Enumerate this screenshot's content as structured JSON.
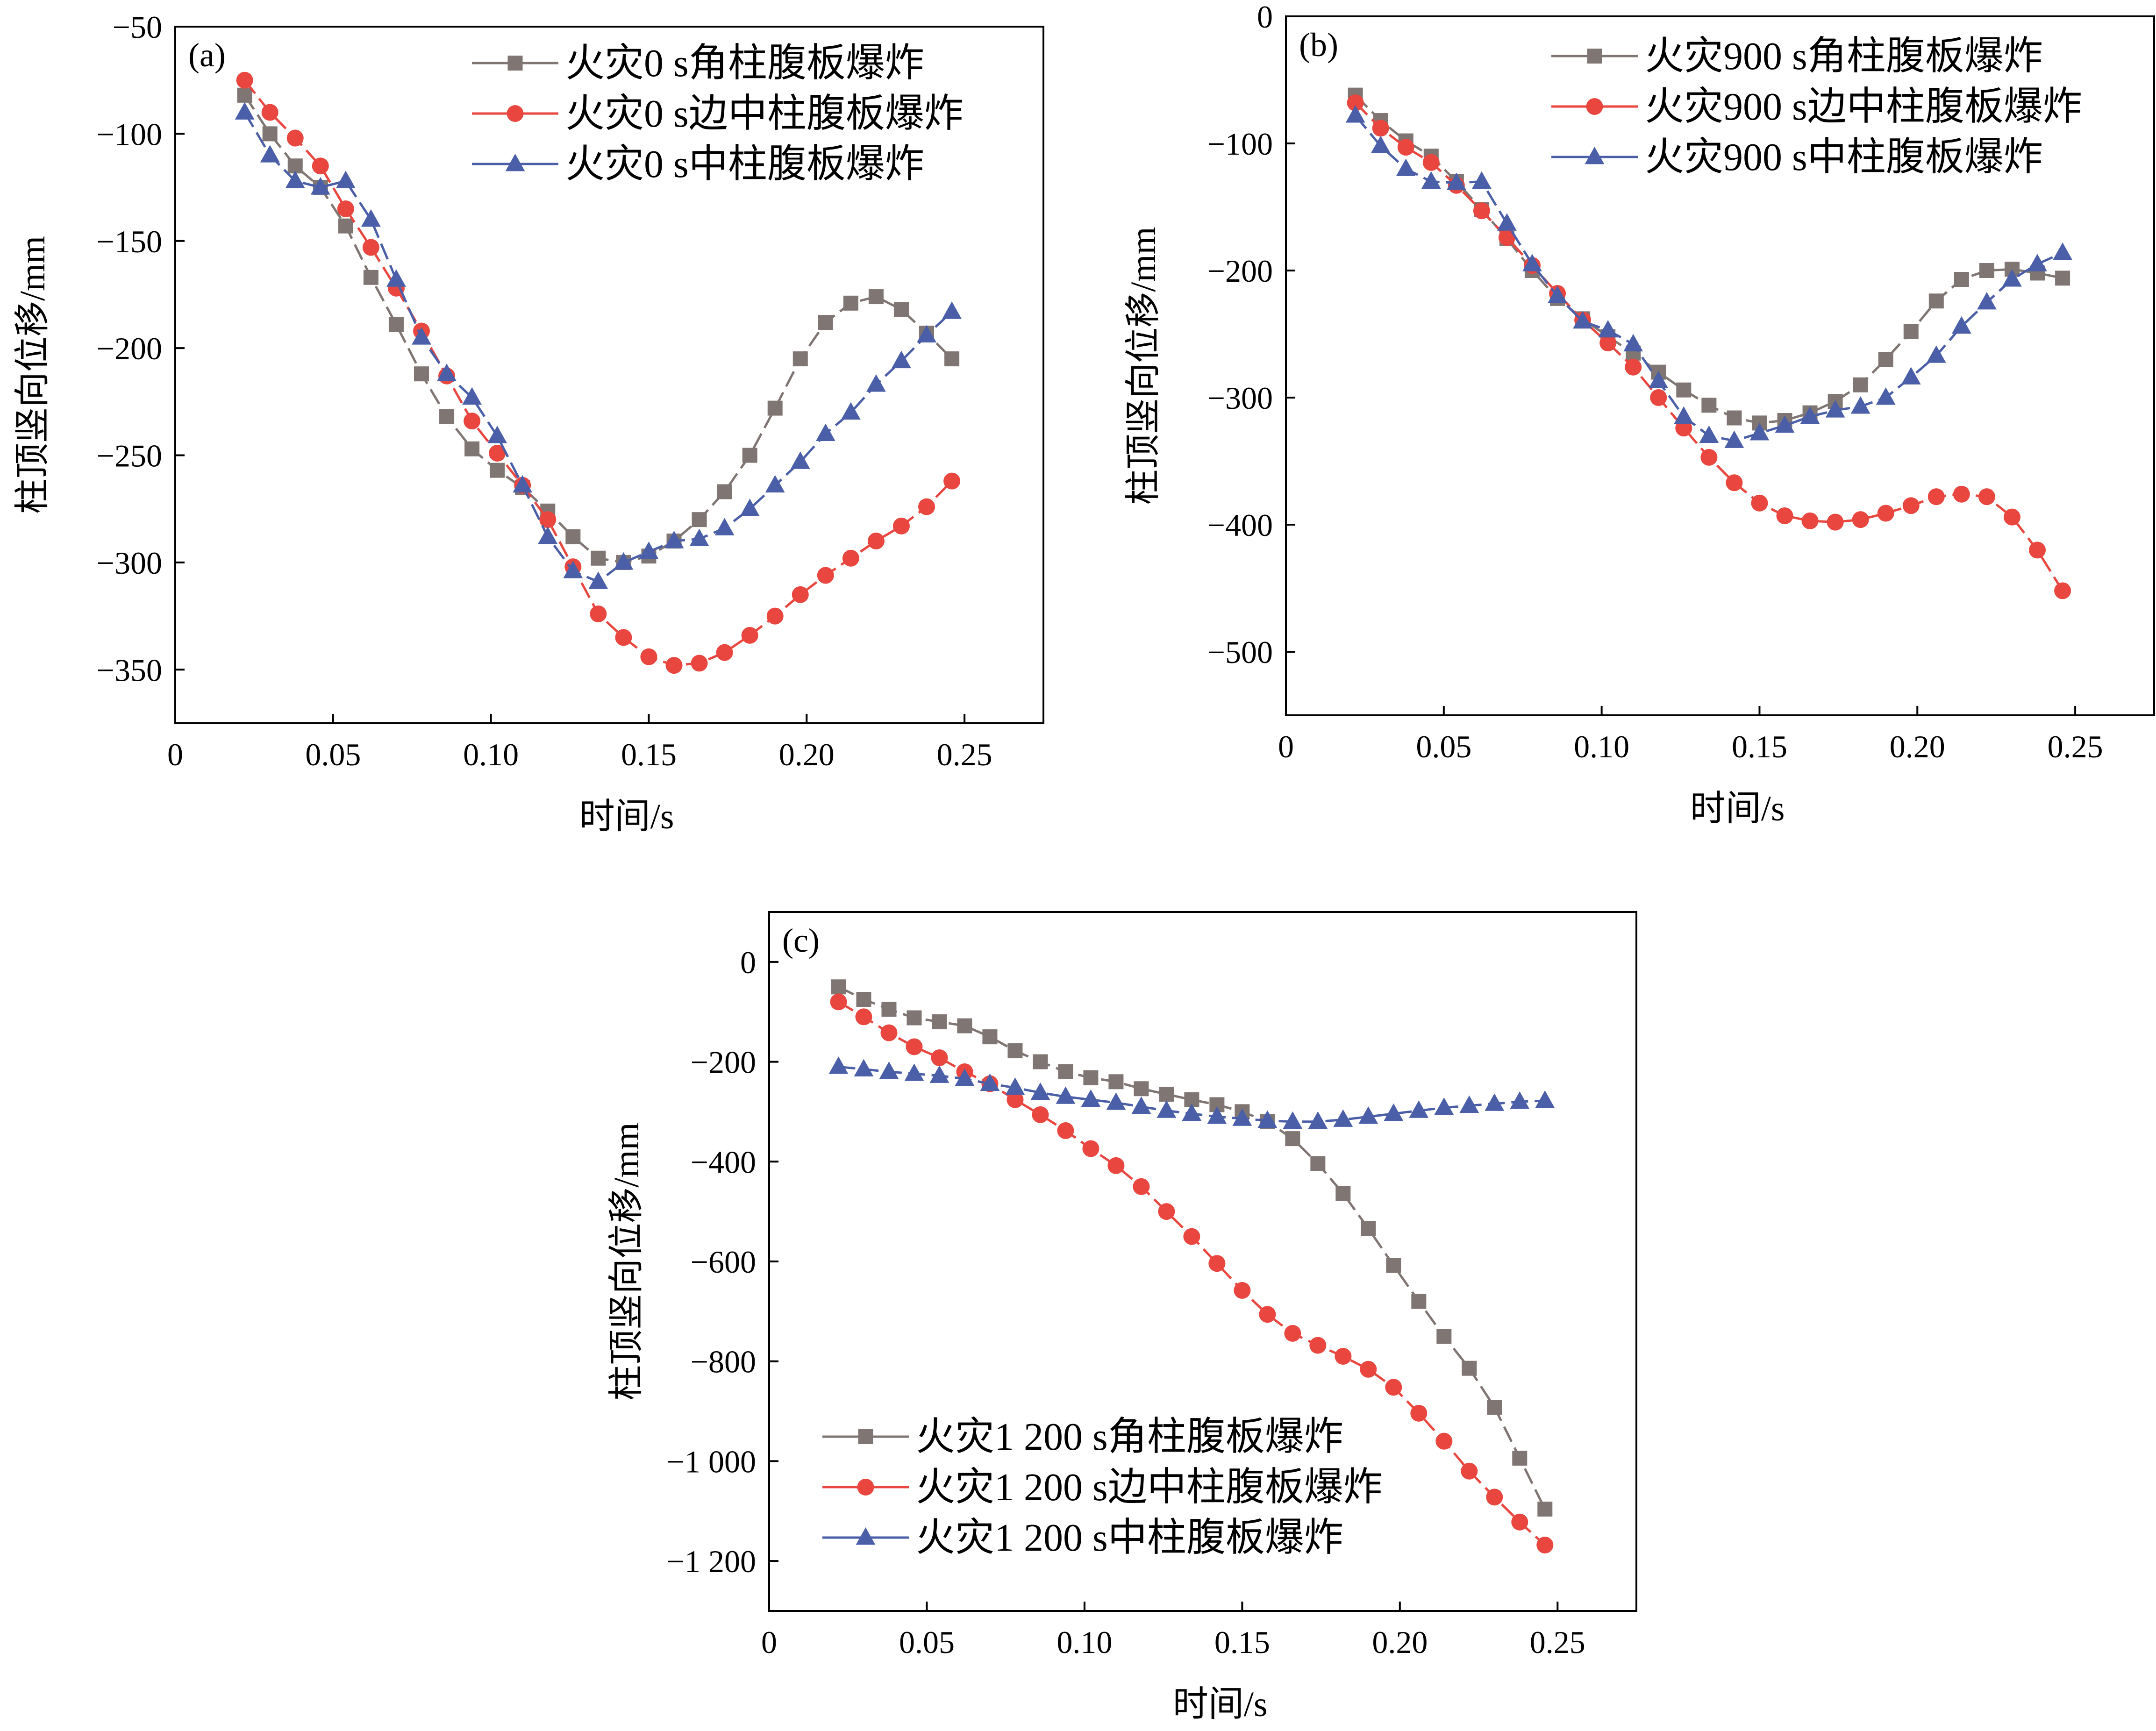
{
  "chart_data": [
    {
      "type": "line",
      "panel_label": "(a)",
      "xlabel": "时间/s",
      "ylabel": "柱顶竖向位移/mm",
      "xlim": [
        0,
        0.275
      ],
      "ylim": [
        -375,
        -50
      ],
      "xticks": [
        0,
        0.05,
        0.1,
        0.15,
        0.2,
        0.25
      ],
      "xtick_labels": [
        "0",
        "0.05",
        "0.10",
        "0.15",
        "0.20",
        "0.25"
      ],
      "yticks": [
        -50,
        -100,
        -150,
        -200,
        -250,
        -300,
        -350
      ],
      "ytick_labels": [
        "−50",
        "−100",
        "−150",
        "−200",
        "−250",
        "−300",
        "−350"
      ],
      "legend_position": "top-right",
      "series": [
        {
          "name": "火灾0 s角柱腹板爆炸",
          "color": "#7f7572",
          "marker": "square",
          "x": [
            0.022,
            0.03,
            0.038,
            0.046,
            0.054,
            0.062,
            0.07,
            0.078,
            0.086,
            0.094,
            0.102,
            0.11,
            0.118,
            0.126,
            0.134,
            0.142,
            0.15,
            0.158,
            0.166,
            0.174,
            0.182,
            0.19,
            0.198,
            0.206,
            0.214,
            0.222,
            0.23,
            0.238,
            0.246
          ],
          "y": [
            -82,
            -100,
            -115,
            -125,
            -143,
            -167,
            -189,
            -212,
            -232,
            -247,
            -257,
            -265,
            -276,
            -288,
            -298,
            -300,
            -297,
            -290,
            -280,
            -267,
            -250,
            -228,
            -205,
            -188,
            -179,
            -176,
            -182,
            -193,
            -205
          ]
        },
        {
          "name": "火灾0 s边中柱腹板爆炸",
          "color": "#e8463f",
          "marker": "circle",
          "x": [
            0.022,
            0.03,
            0.038,
            0.046,
            0.054,
            0.062,
            0.07,
            0.078,
            0.086,
            0.094,
            0.102,
            0.11,
            0.118,
            0.126,
            0.134,
            0.142,
            0.15,
            0.158,
            0.166,
            0.174,
            0.182,
            0.19,
            0.198,
            0.206,
            0.214,
            0.222,
            0.23,
            0.238,
            0.246
          ],
          "y": [
            -75,
            -90,
            -102,
            -115,
            -135,
            -153,
            -172,
            -192,
            -213,
            -234,
            -249,
            -264,
            -280,
            -302,
            -324,
            -335,
            -344,
            -348,
            -347,
            -342,
            -334,
            -325,
            -315,
            -306,
            -298,
            -290,
            -283,
            -274,
            -262
          ]
        },
        {
          "name": "火灾0 s中柱腹板爆炸",
          "color": "#4a5fa8",
          "marker": "triangle",
          "x": [
            0.022,
            0.03,
            0.038,
            0.046,
            0.054,
            0.062,
            0.07,
            0.078,
            0.086,
            0.094,
            0.102,
            0.11,
            0.118,
            0.126,
            0.134,
            0.142,
            0.15,
            0.158,
            0.166,
            0.174,
            0.182,
            0.19,
            0.198,
            0.206,
            0.214,
            0.222,
            0.23,
            0.238,
            0.246
          ],
          "y": [
            -90,
            -110,
            -122,
            -125,
            -122,
            -140,
            -168,
            -195,
            -212,
            -223,
            -241,
            -264,
            -288,
            -304,
            -309,
            -300,
            -295,
            -290,
            -289,
            -284,
            -275,
            -264,
            -253,
            -240,
            -230,
            -217,
            -206,
            -194,
            -183
          ]
        }
      ]
    },
    {
      "type": "line",
      "panel_label": "(b)",
      "xlabel": "时间/s",
      "ylabel": "柱顶竖向位移/mm",
      "xlim": [
        0,
        0.275
      ],
      "ylim": [
        -550,
        0
      ],
      "xticks": [
        0,
        0.05,
        0.1,
        0.15,
        0.2,
        0.25
      ],
      "xtick_labels": [
        "0",
        "0.05",
        "0.10",
        "0.15",
        "0.20",
        "0.25"
      ],
      "yticks": [
        0,
        -100,
        -200,
        -300,
        -400,
        -500
      ],
      "ytick_labels": [
        "0",
        "−100",
        "−200",
        "−300",
        "−400",
        "−500"
      ],
      "legend_position": "top-right",
      "series": [
        {
          "name": "火灾900 s角柱腹板爆炸",
          "color": "#7f7572",
          "marker": "square",
          "x": [
            0.022,
            0.03,
            0.038,
            0.046,
            0.054,
            0.062,
            0.07,
            0.078,
            0.086,
            0.094,
            0.102,
            0.11,
            0.118,
            0.126,
            0.134,
            0.142,
            0.15,
            0.158,
            0.166,
            0.174,
            0.182,
            0.19,
            0.198,
            0.206,
            0.214,
            0.222,
            0.23,
            0.238,
            0.246
          ],
          "y": [
            -62,
            -82,
            -98,
            -110,
            -130,
            -152,
            -175,
            -200,
            -222,
            -238,
            -252,
            -265,
            -280,
            -294,
            -306,
            -316,
            -320,
            -318,
            -312,
            -303,
            -290,
            -270,
            -248,
            -224,
            -207,
            -200,
            -199,
            -202,
            -206
          ]
        },
        {
          "name": "火灾900 s边中柱腹板爆炸",
          "color": "#e8463f",
          "marker": "circle",
          "x": [
            0.022,
            0.03,
            0.038,
            0.046,
            0.054,
            0.062,
            0.07,
            0.078,
            0.086,
            0.094,
            0.102,
            0.11,
            0.118,
            0.126,
            0.134,
            0.142,
            0.15,
            0.158,
            0.166,
            0.174,
            0.182,
            0.19,
            0.198,
            0.206,
            0.214,
            0.222,
            0.23,
            0.238,
            0.246
          ],
          "y": [
            -68,
            -88,
            -103,
            -115,
            -133,
            -153,
            -174,
            -196,
            -218,
            -239,
            -257,
            -276,
            -300,
            -324,
            -347,
            -367,
            -383,
            -393,
            -397,
            -398,
            -396,
            -391,
            -385,
            -378,
            -376,
            -378,
            -394,
            -420,
            -452
          ]
        },
        {
          "name": "火灾900 s中柱腹板爆炸",
          "color": "#4a5fa8",
          "marker": "triangle",
          "x": [
            0.022,
            0.03,
            0.038,
            0.046,
            0.054,
            0.062,
            0.07,
            0.078,
            0.086,
            0.094,
            0.102,
            0.11,
            0.118,
            0.126,
            0.134,
            0.142,
            0.15,
            0.158,
            0.166,
            0.174,
            0.182,
            0.19,
            0.198,
            0.206,
            0.214,
            0.222,
            0.23,
            0.238,
            0.246
          ],
          "y": [
            -78,
            -102,
            -120,
            -130,
            -131,
            -130,
            -163,
            -195,
            -220,
            -240,
            -247,
            -258,
            -287,
            -315,
            -330,
            -334,
            -328,
            -322,
            -315,
            -310,
            -307,
            -300,
            -284,
            -267,
            -244,
            -225,
            -207,
            -195,
            -186
          ]
        }
      ]
    },
    {
      "type": "line",
      "panel_label": "(c)",
      "xlabel": "时间/s",
      "ylabel": "柱顶竖向位移/mm",
      "xlim": [
        0,
        0.275
      ],
      "ylim": [
        -1300,
        100
      ],
      "xticks": [
        0,
        0.05,
        0.1,
        0.15,
        0.2,
        0.25
      ],
      "xtick_labels": [
        "0",
        "0.05",
        "0.10",
        "0.15",
        "0.20",
        "0.25"
      ],
      "yticks": [
        0,
        -200,
        -400,
        -600,
        -800,
        -1000,
        -1200
      ],
      "ytick_labels": [
        "0",
        "−200",
        "−400",
        "−600",
        "−800",
        "−1 000",
        "−1 200"
      ],
      "legend_position": "bottom-left",
      "series": [
        {
          "name": "火灾1 200 s角柱腹板爆炸",
          "color": "#7f7572",
          "marker": "square",
          "x": [
            0.022,
            0.03,
            0.038,
            0.046,
            0.054,
            0.062,
            0.07,
            0.078,
            0.086,
            0.094,
            0.102,
            0.11,
            0.118,
            0.126,
            0.134,
            0.142,
            0.15,
            0.158,
            0.166,
            0.174,
            0.182,
            0.19,
            0.198,
            0.206,
            0.214,
            0.222,
            0.23,
            0.238,
            0.246
          ],
          "y": [
            -50,
            -75,
            -95,
            -112,
            -120,
            -128,
            -150,
            -178,
            -200,
            -220,
            -232,
            -240,
            -254,
            -265,
            -276,
            -286,
            -300,
            -320,
            -354,
            -404,
            -464,
            -534,
            -608,
            -680,
            -750,
            -814,
            -892,
            -994,
            -1096
          ]
        },
        {
          "name": "火灾1 200 s边中柱腹板爆炸",
          "color": "#e8463f",
          "marker": "circle",
          "x": [
            0.022,
            0.03,
            0.038,
            0.046,
            0.054,
            0.062,
            0.07,
            0.078,
            0.086,
            0.094,
            0.102,
            0.11,
            0.118,
            0.126,
            0.134,
            0.142,
            0.15,
            0.158,
            0.166,
            0.174,
            0.182,
            0.19,
            0.198,
            0.206,
            0.214,
            0.222,
            0.23,
            0.238,
            0.246
          ],
          "y": [
            -80,
            -110,
            -142,
            -170,
            -192,
            -220,
            -244,
            -276,
            -306,
            -338,
            -374,
            -408,
            -450,
            -500,
            -550,
            -604,
            -658,
            -706,
            -744,
            -768,
            -790,
            -816,
            -852,
            -904,
            -960,
            -1020,
            -1072,
            -1122,
            -1168
          ]
        },
        {
          "name": "火灾1 200 s中柱腹板爆炸",
          "color": "#4a5fa8",
          "marker": "triangle",
          "x": [
            0.022,
            0.03,
            0.038,
            0.046,
            0.054,
            0.062,
            0.07,
            0.078,
            0.086,
            0.094,
            0.102,
            0.11,
            0.118,
            0.126,
            0.134,
            0.142,
            0.15,
            0.158,
            0.166,
            0.174,
            0.182,
            0.19,
            0.198,
            0.206,
            0.214,
            0.222,
            0.23,
            0.238,
            0.246
          ],
          "y": [
            -210,
            -215,
            -220,
            -224,
            -228,
            -234,
            -244,
            -252,
            -262,
            -270,
            -276,
            -282,
            -290,
            -298,
            -304,
            -310,
            -314,
            -318,
            -320,
            -320,
            -316,
            -310,
            -304,
            -298,
            -292,
            -288,
            -284,
            -280,
            -278
          ]
        }
      ]
    }
  ]
}
